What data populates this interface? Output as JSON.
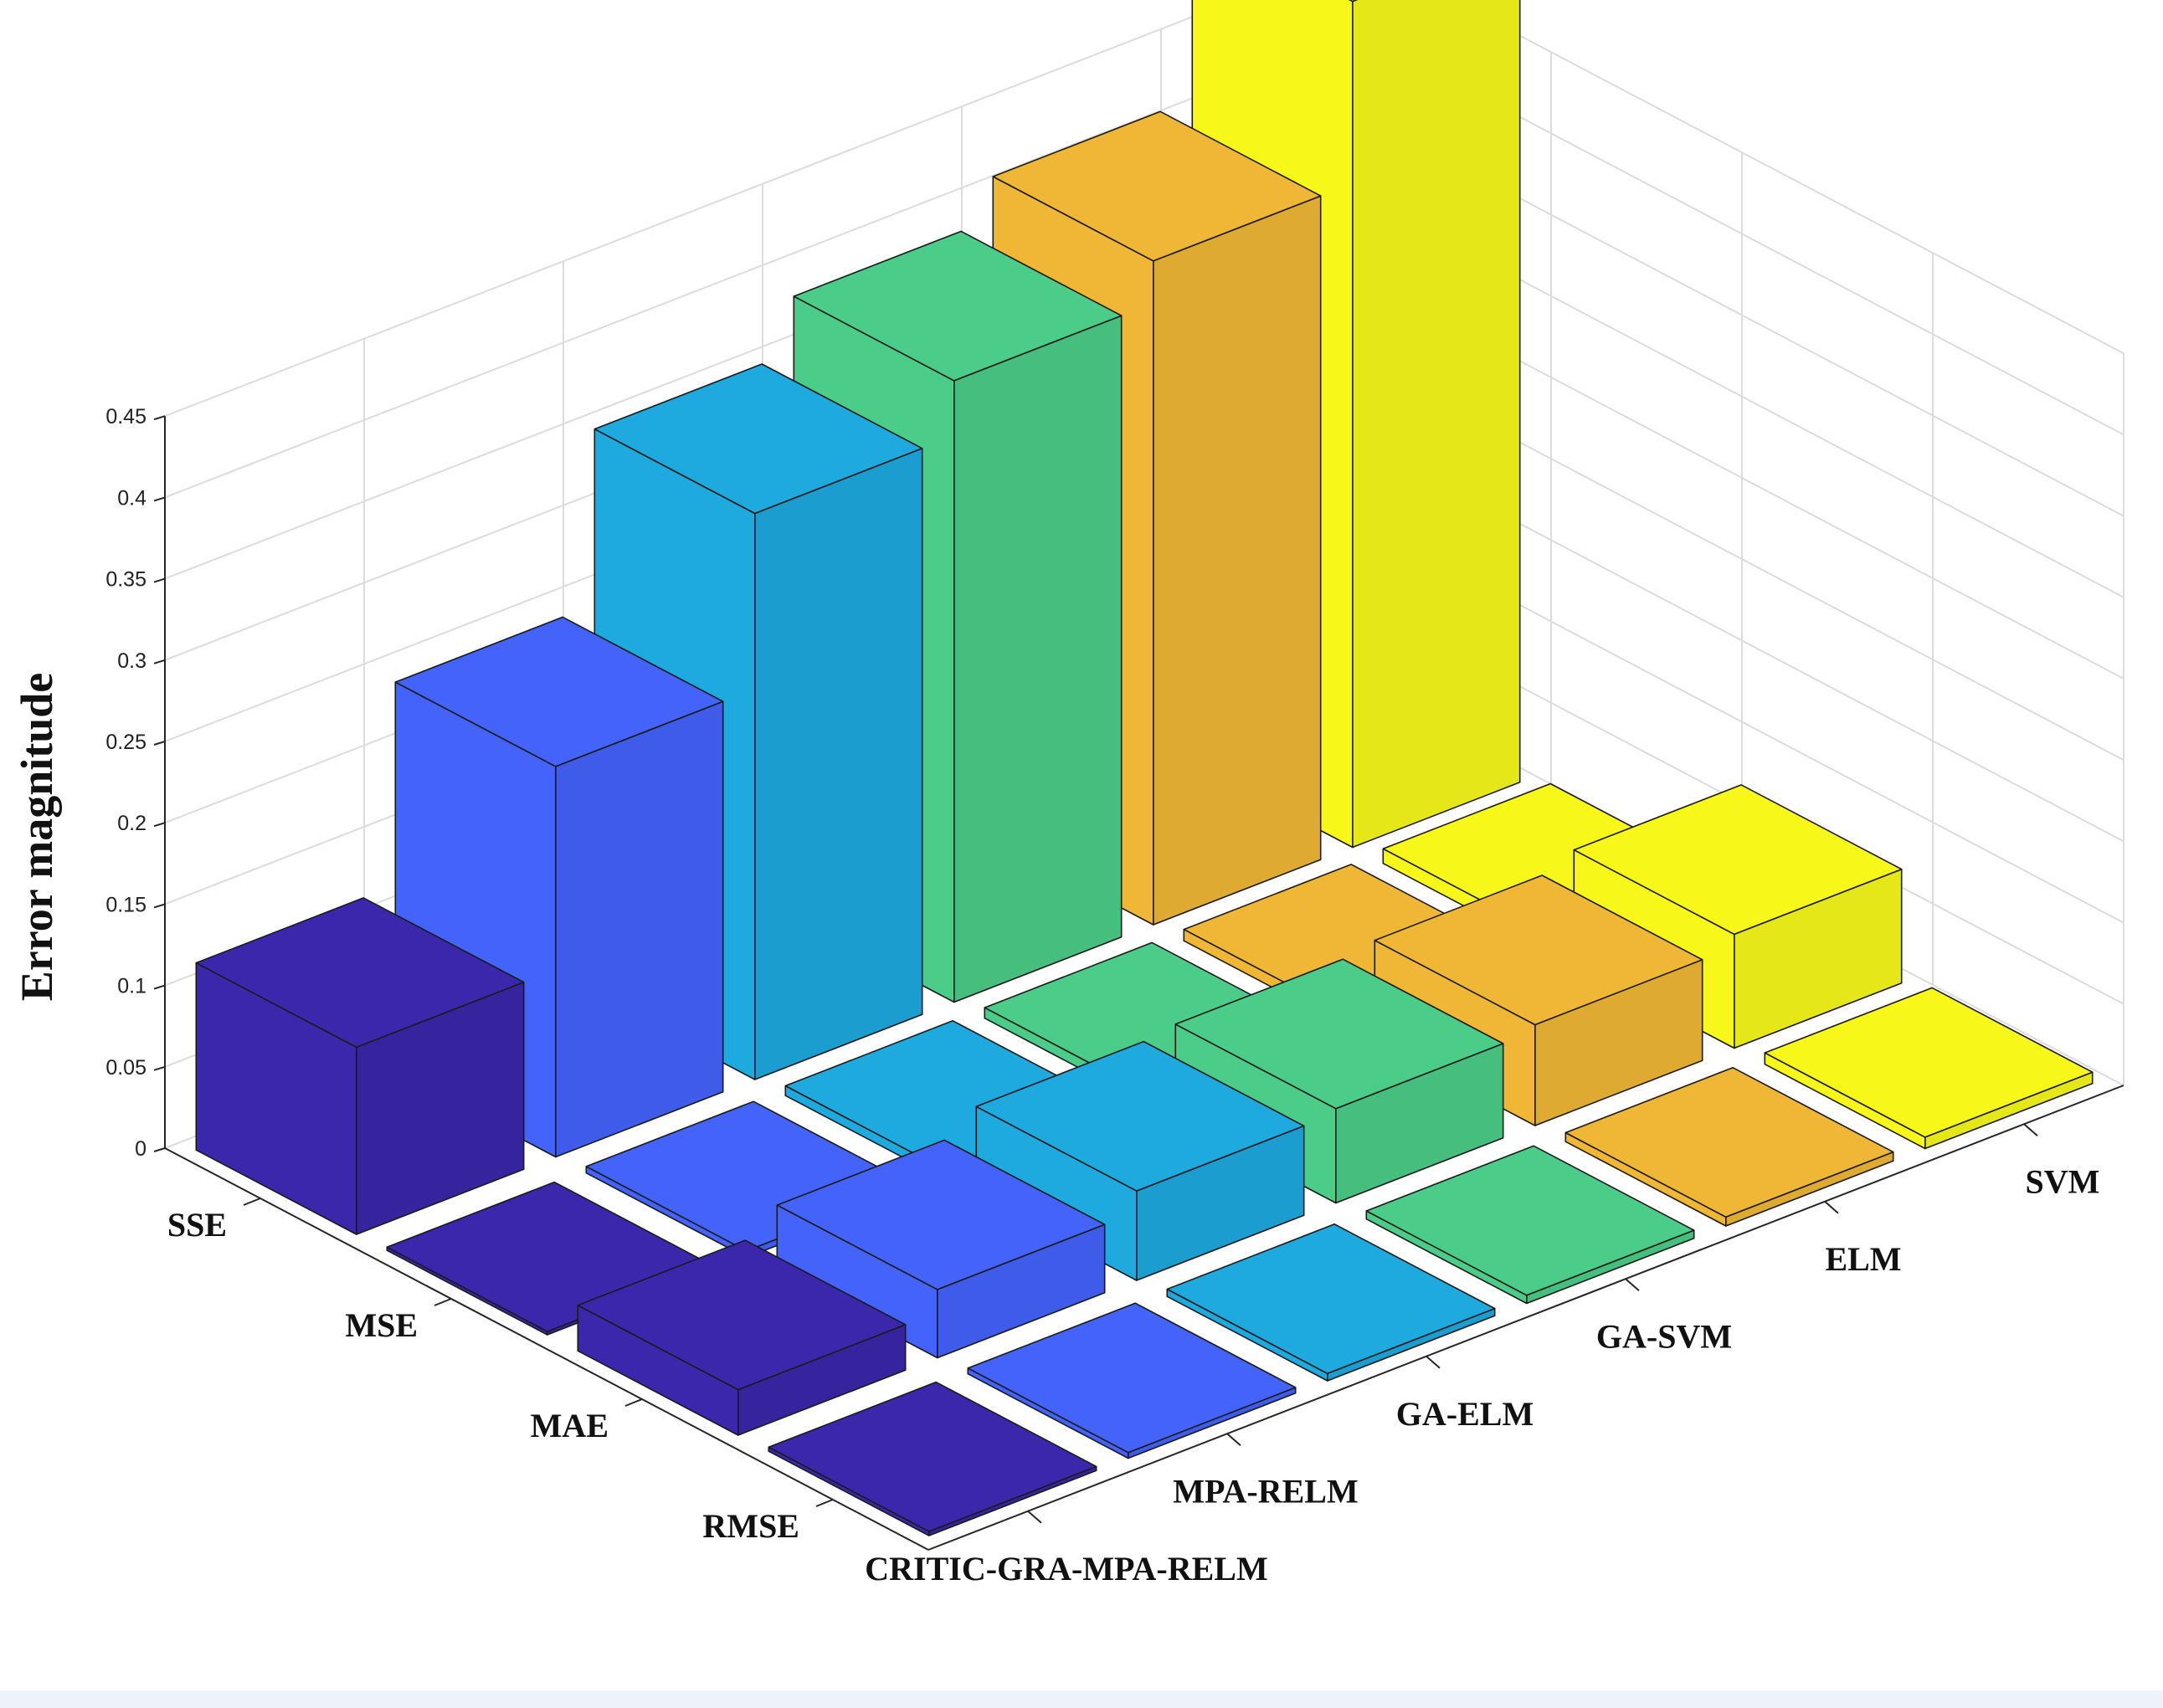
{
  "chart_data": {
    "type": "bar3d",
    "ylabel": "Error magnitude",
    "zlim": [
      0,
      0.45
    ],
    "zticks": [
      "0",
      "0.05",
      "0.1",
      "0.15",
      "0.2",
      "0.25",
      "0.3",
      "0.35",
      "0.4",
      "0.45"
    ],
    "grid": true,
    "metrics": [
      "SSE",
      "MSE",
      "MAE",
      "RMSE"
    ],
    "models": [
      "CRITIC-GRA-MPA-RELM",
      "MPA-RELM",
      "GA-ELM",
      "GA-SVM",
      "ELM",
      "SVM"
    ],
    "series": [
      {
        "name": "CRITIC-GRA-MPA-RELM",
        "values": [
          0.115,
          0.002,
          0.028,
          0.0025
        ]
      },
      {
        "name": "MPA-RELM",
        "values": [
          0.24,
          0.004,
          0.042,
          0.0035
        ]
      },
      {
        "name": "GA-ELM",
        "values": [
          0.348,
          0.006,
          0.055,
          0.0045
        ]
      },
      {
        "name": "GA-SVM",
        "values": [
          0.382,
          0.0065,
          0.058,
          0.005
        ]
      },
      {
        "name": "ELM",
        "values": [
          0.408,
          0.007,
          0.062,
          0.0055
        ]
      },
      {
        "name": "SVM",
        "values": [
          0.52,
          0.009,
          0.07,
          0.007
        ]
      }
    ],
    "colors": [
      "#3a27ab",
      "#4363fb",
      "#1ea9df",
      "#4bcc88",
      "#efb735",
      "#f7f81a"
    ]
  }
}
